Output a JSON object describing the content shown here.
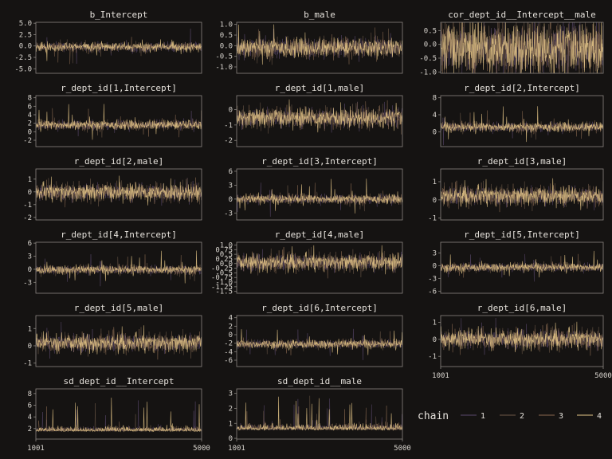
{
  "colors": {
    "background": "#151312",
    "panel_border": "#8a8680",
    "text": "#e6e2dc",
    "chains": [
      "#5b4a6e",
      "#6e5a48",
      "#8a6a50",
      "#e8c98a"
    ]
  },
  "chart_data": {
    "type": "line",
    "kind": "MCMC trace plots",
    "x_range": [
      1001,
      5000
    ],
    "x_tick_labels": [
      "1001",
      "5000"
    ],
    "legend": {
      "title": "chain",
      "entries": [
        "1",
        "2",
        "3",
        "4"
      ],
      "position": "bottom-right"
    },
    "panels": [
      {
        "title": "b_Intercept",
        "yticks": [
          5.0,
          2.5,
          0.0,
          -2.5,
          -5.0
        ],
        "ytick_labels": [
          "5.0",
          "2.5",
          "0.0",
          "-2.5",
          "-5.0"
        ],
        "ylim": [
          -6.0,
          5.2
        ],
        "center": -0.2,
        "spread": 0.9,
        "spike": 3.5
      },
      {
        "title": "b_male",
        "yticks": [
          1.0,
          0.5,
          0.0,
          -0.5,
          -1.0
        ],
        "ytick_labels": [
          "1.0",
          "0.5",
          "0.0",
          "-0.5",
          "-1.0"
        ],
        "ylim": [
          -1.3,
          1.1
        ],
        "center": -0.1,
        "spread": 0.4,
        "spike": 0.9
      },
      {
        "title": "cor_dept_id__Intercept__male",
        "yticks": [
          0.5,
          0.0,
          -0.5,
          -1.0
        ],
        "ytick_labels": [
          "0.5",
          "0.0",
          "-0.5",
          "-1.0"
        ],
        "ylim": [
          -1.05,
          0.8
        ],
        "center": -0.15,
        "spread": 0.85,
        "spike": 0.5
      },
      {
        "title": "r_dept_id[1,Intercept]",
        "yticks": [
          8,
          6,
          4,
          2,
          0,
          -2
        ],
        "ytick_labels": [
          "8",
          "6",
          "4",
          "2",
          "0",
          "-2"
        ],
        "ylim": [
          -3.5,
          8.5
        ],
        "center": 1.6,
        "spread": 1.0,
        "spike": 4.5
      },
      {
        "title": "r_dept_id[1,male]",
        "yticks": [
          0,
          -1,
          -2
        ],
        "ytick_labels": [
          "0",
          "-1",
          "-2"
        ],
        "ylim": [
          -2.4,
          0.9
        ],
        "center": -0.55,
        "spread": 0.55,
        "spike": 1.1
      },
      {
        "title": "r_dept_id[2,Intercept]",
        "yticks": [
          8,
          4,
          0
        ],
        "ytick_labels": [
          "8",
          "4",
          "0"
        ],
        "ylim": [
          -3.5,
          8.5
        ],
        "center": 1.1,
        "spread": 1.0,
        "spike": 4.5
      },
      {
        "title": "r_dept_id[2,male]",
        "yticks": [
          1,
          0,
          -1,
          -2
        ],
        "ytick_labels": [
          "1",
          "0",
          "-1",
          "-2"
        ],
        "ylim": [
          -2.2,
          1.8
        ],
        "center": -0.05,
        "spread": 0.6,
        "spike": 1.2
      },
      {
        "title": "r_dept_id[3,Intercept]",
        "yticks": [
          6,
          3,
          0,
          -3
        ],
        "ytick_labels": [
          "6",
          "3",
          "0",
          "-3"
        ],
        "ylim": [
          -4.5,
          6.5
        ],
        "center": 0.0,
        "spread": 0.9,
        "spike": 4.0
      },
      {
        "title": "r_dept_id[3,male]",
        "yticks": [
          1,
          0,
          -1
        ],
        "ytick_labels": [
          "1",
          "0",
          "-1"
        ],
        "ylim": [
          -1.1,
          1.7
        ],
        "center": 0.2,
        "spread": 0.45,
        "spike": 0.9
      },
      {
        "title": "r_dept_id[4,Intercept]",
        "yticks": [
          6,
          3,
          0,
          -3
        ],
        "ytick_labels": [
          "6",
          "3",
          "0",
          "-3"
        ],
        "ylim": [
          -5.5,
          6.2
        ],
        "center": -0.1,
        "spread": 0.9,
        "spike": 4.0
      },
      {
        "title": "r_dept_id[4,male]",
        "yticks": [
          1.0,
          0.75,
          0.5,
          0.25,
          0.0,
          -0.25,
          -0.5,
          -0.75,
          -1.0,
          -1.25,
          -1.5
        ],
        "ytick_labels": [
          "1.0",
          "0.75",
          "0.5",
          "0.25",
          "0.0",
          "-0.25",
          "-0.5",
          "-0.75",
          "-1.0",
          "-1.25",
          "-1.5"
        ],
        "ylim": [
          -1.6,
          1.15
        ],
        "center": 0.05,
        "spread": 0.4,
        "spike": 0.9
      },
      {
        "title": "r_dept_id[5,Intercept]",
        "yticks": [
          3,
          0,
          -3,
          -6
        ],
        "ytick_labels": [
          "3",
          "0",
          "-3",
          "-6"
        ],
        "ylim": [
          -6.5,
          5.5
        ],
        "center": -0.4,
        "spread": 0.9,
        "spike": 3.5
      },
      {
        "title": "r_dept_id[5,male]",
        "yticks": [
          1,
          0,
          -1
        ],
        "ytick_labels": [
          "1",
          "0",
          "-1"
        ],
        "ylim": [
          -1.2,
          1.75
        ],
        "center": 0.15,
        "spread": 0.45,
        "spike": 1.0
      },
      {
        "title": "r_dept_id[6,Intercept]",
        "yticks": [
          4,
          2,
          0,
          -2,
          -4,
          -6
        ],
        "ytick_labels": [
          "4",
          "2",
          "0",
          "-2",
          "-4",
          "-6"
        ],
        "ylim": [
          -7.5,
          4.5
        ],
        "center": -2.2,
        "spread": 0.9,
        "spike": 4.0
      },
      {
        "title": "r_dept_id[6,male]",
        "yticks": [
          1,
          0,
          -1
        ],
        "ytick_labels": [
          "1",
          "0",
          "-1"
        ],
        "ylim": [
          -1.6,
          1.4
        ],
        "center": 0.0,
        "spread": 0.5,
        "spike": 1.0
      },
      {
        "title": "sd_dept_id__Intercept",
        "yticks": [
          8,
          6,
          4,
          2
        ],
        "ytick_labels": [
          "8",
          "6",
          "4",
          "2"
        ],
        "ylim": [
          0.2,
          8.8
        ],
        "center": 1.5,
        "spread": 0.4,
        "spike": 5.5,
        "positive": true
      },
      {
        "title": "sd_dept_id__male",
        "yticks": [
          3,
          2,
          1,
          0
        ],
        "ytick_labels": [
          "3",
          "2",
          "1",
          "0"
        ],
        "ylim": [
          -0.05,
          3.3
        ],
        "center": 0.55,
        "spread": 0.2,
        "spike": 2.2,
        "positive": true
      }
    ]
  }
}
